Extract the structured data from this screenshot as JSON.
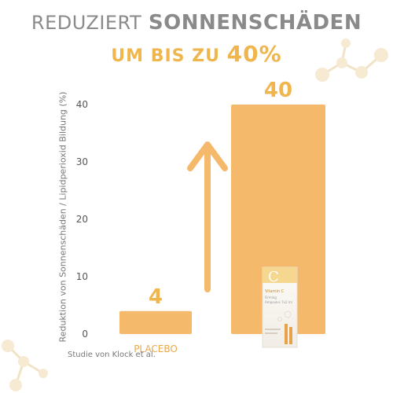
{
  "headline": {
    "light": "REDUZIERT",
    "bold": "SONNENSCHÄDEN",
    "sub_prefix": "UM BIS ZU",
    "sub_value": "40%"
  },
  "source_note": "Studie von Klock et al.",
  "product": {
    "brand_letter": "C",
    "name": "Vitamin C",
    "line1": "Firming",
    "line2": "Ampoules 7x2 ml"
  },
  "colors": {
    "bar": "#f5b96b",
    "arrow": "#f5b96b",
    "accent": "#f0b64d",
    "text_gray": "#8a8a8a"
  },
  "chart_data": {
    "type": "bar",
    "categories": [
      "PLACEBO",
      ""
    ],
    "values": [
      4,
      40
    ],
    "value_labels": [
      "4",
      "40"
    ],
    "title": "",
    "xlabel": "",
    "ylabel": "Reduktion von Sonnenschäden / Lipidperioxid Bildung (%)",
    "ylim": [
      0,
      40
    ],
    "yticks": [
      0,
      10,
      20,
      30,
      40
    ],
    "grid": false,
    "legend": "none"
  }
}
